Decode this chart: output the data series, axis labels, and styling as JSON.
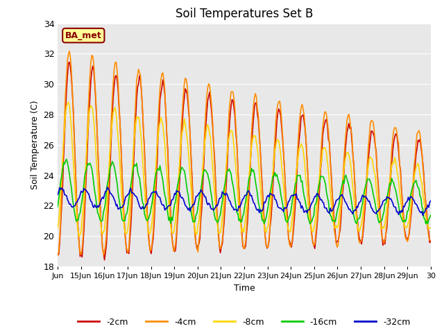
{
  "title": "Soil Temperatures Set B",
  "xlabel": "Time",
  "ylabel": "Soil Temperature (C)",
  "ylim": [
    18,
    34
  ],
  "background_color": "#e8e8e8",
  "annotation_text": "BA_met",
  "annotation_color": "#8B0000",
  "annotation_bg": "#FFFF99",
  "series": {
    "-2cm": {
      "color": "#CC0000",
      "lw": 1.2
    },
    "-4cm": {
      "color": "#FF8C00",
      "lw": 1.2
    },
    "-8cm": {
      "color": "#FFD700",
      "lw": 1.2
    },
    "-16cm": {
      "color": "#00CC00",
      "lw": 1.2
    },
    "-32cm": {
      "color": "#0000CC",
      "lw": 1.2
    }
  },
  "legend_order": [
    "-2cm",
    "-4cm",
    "-8cm",
    "-16cm",
    "-32cm"
  ],
  "day_labels": [
    "Jun",
    "15Jun",
    "16Jun",
    "17Jun",
    "18Jun",
    "19Jun",
    "20Jun",
    "21Jun",
    "22Jun",
    "23Jun",
    "24Jun",
    "25Jun",
    "26Jun",
    "27Jun",
    "28Jun",
    "29Jun",
    "30"
  ],
  "yticks": [
    18,
    20,
    22,
    24,
    26,
    28,
    30,
    32,
    34
  ]
}
